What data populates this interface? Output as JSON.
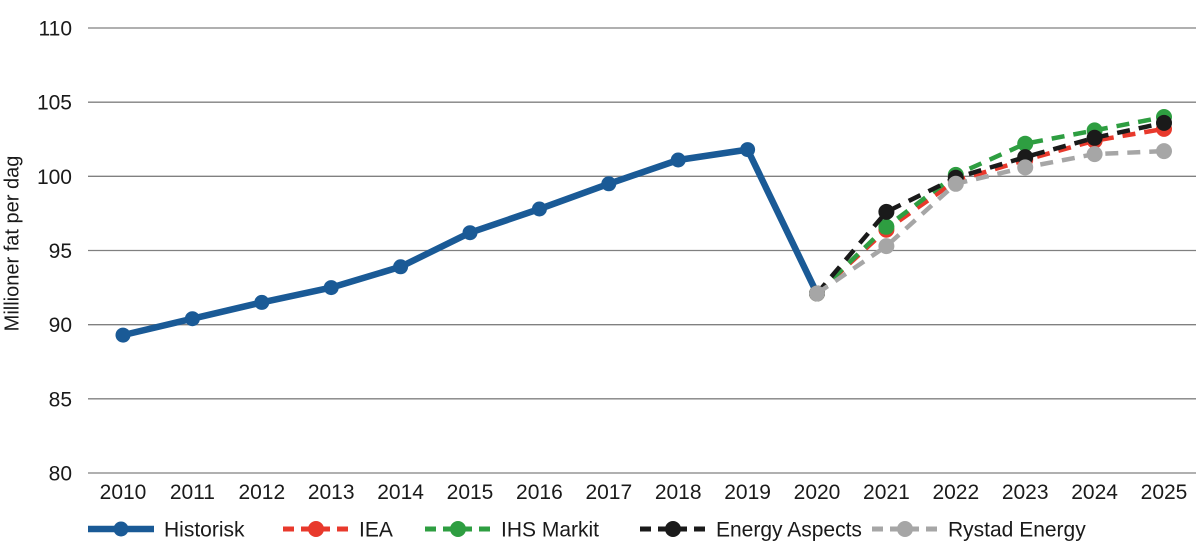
{
  "figure": {
    "background": "#ffffff",
    "gridline_color": "#808080",
    "text_color": "#1a1a1a"
  },
  "chart_data": {
    "type": "line",
    "title": "",
    "xlabel": "",
    "ylabel": "Millioner fat per dag",
    "ylim": [
      80,
      110
    ],
    "yticks": [
      110,
      105,
      100,
      95,
      90,
      85,
      80
    ],
    "grid": "horizontal",
    "legend_position": "bottom",
    "x": [
      2010,
      2011,
      2012,
      2013,
      2014,
      2015,
      2016,
      2017,
      2018,
      2019,
      2020,
      2021,
      2022,
      2023,
      2024,
      2025
    ],
    "series": [
      {
        "name": "Historisk",
        "color": "#1A5A96",
        "style": "solid",
        "values": [
          89.3,
          90.4,
          91.5,
          92.5,
          93.9,
          96.2,
          97.8,
          99.5,
          101.1,
          101.8,
          92.1,
          null,
          null,
          null,
          null,
          null
        ]
      },
      {
        "name": "IEA",
        "color": "#E8392C",
        "style": "dashed",
        "values": [
          null,
          null,
          null,
          null,
          null,
          null,
          null,
          null,
          null,
          null,
          92.1,
          96.4,
          99.7,
          101.1,
          102.4,
          103.2
        ]
      },
      {
        "name": "IHS Markit",
        "color": "#2E9E41",
        "style": "dashed",
        "values": [
          null,
          null,
          null,
          null,
          null,
          null,
          null,
          null,
          null,
          null,
          92.1,
          96.6,
          100.1,
          102.2,
          103.1,
          104.0
        ]
      },
      {
        "name": "Energy Aspects",
        "color": "#1A1A1A",
        "style": "dashed",
        "values": [
          null,
          null,
          null,
          null,
          null,
          null,
          null,
          null,
          null,
          null,
          92.1,
          97.6,
          99.9,
          101.3,
          102.6,
          103.6
        ]
      },
      {
        "name": "Rystad Energy",
        "color": "#A6A6A6",
        "style": "dashed",
        "values": [
          null,
          null,
          null,
          null,
          null,
          null,
          null,
          null,
          null,
          null,
          92.1,
          95.3,
          99.5,
          100.6,
          101.5,
          101.7
        ]
      }
    ]
  }
}
